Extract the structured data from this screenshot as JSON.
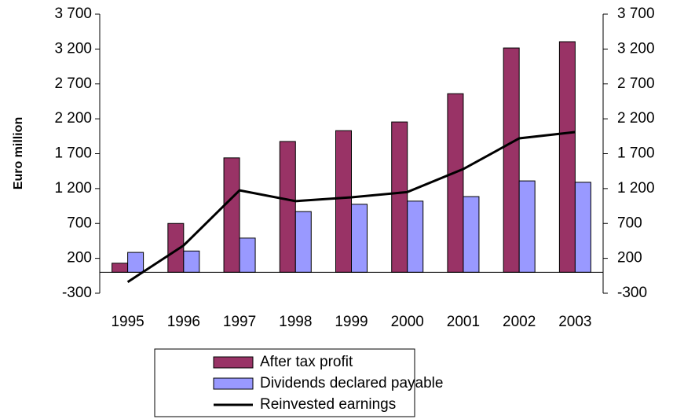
{
  "chart_data": {
    "type": "bar-line",
    "y_label": "Euro million",
    "categories": [
      "1995",
      "1996",
      "1997",
      "1998",
      "1999",
      "2000",
      "2001",
      "2002",
      "2003"
    ],
    "series": [
      {
        "name": "After tax profit",
        "type": "bar",
        "color": "#993366",
        "values": [
          130,
          700,
          1640,
          1875,
          2030,
          2155,
          2560,
          3215,
          3305
        ]
      },
      {
        "name": "Dividends declared payable",
        "type": "bar",
        "color": "#9999ff",
        "values": [
          285,
          305,
          490,
          870,
          975,
          1020,
          1085,
          1310,
          1290
        ]
      },
      {
        "name": "Reinvested earnings",
        "type": "line",
        "color": "#000000",
        "values": [
          -140,
          385,
          1175,
          1020,
          1075,
          1150,
          1480,
          1920,
          2010
        ]
      }
    ],
    "ylim": [
      -300,
      3700
    ],
    "yticks": [
      -300,
      200,
      700,
      {
        "value": 1200,
        "label": "1 200"
      },
      {
        "value": 1700,
        "label": "1 700"
      },
      {
        "value": 2200,
        "label": "2 200"
      },
      {
        "value": 2700,
        "label": "2 700"
      },
      {
        "value": 3200,
        "label": "3 200"
      },
      {
        "value": 3700,
        "label": "3 700"
      }
    ],
    "y2lim": [
      -300,
      3700
    ],
    "y2ticks": [
      -300,
      200,
      700,
      {
        "value": 1200,
        "label": "1 200"
      },
      {
        "value": 1700,
        "label": "1 700"
      },
      {
        "value": 2200,
        "label": "2 200"
      },
      {
        "value": 2700,
        "label": "2 700"
      },
      {
        "value": 3200,
        "label": "3 200"
      },
      {
        "value": 3700,
        "label": "3 700"
      }
    ],
    "legend": "bottom"
  }
}
